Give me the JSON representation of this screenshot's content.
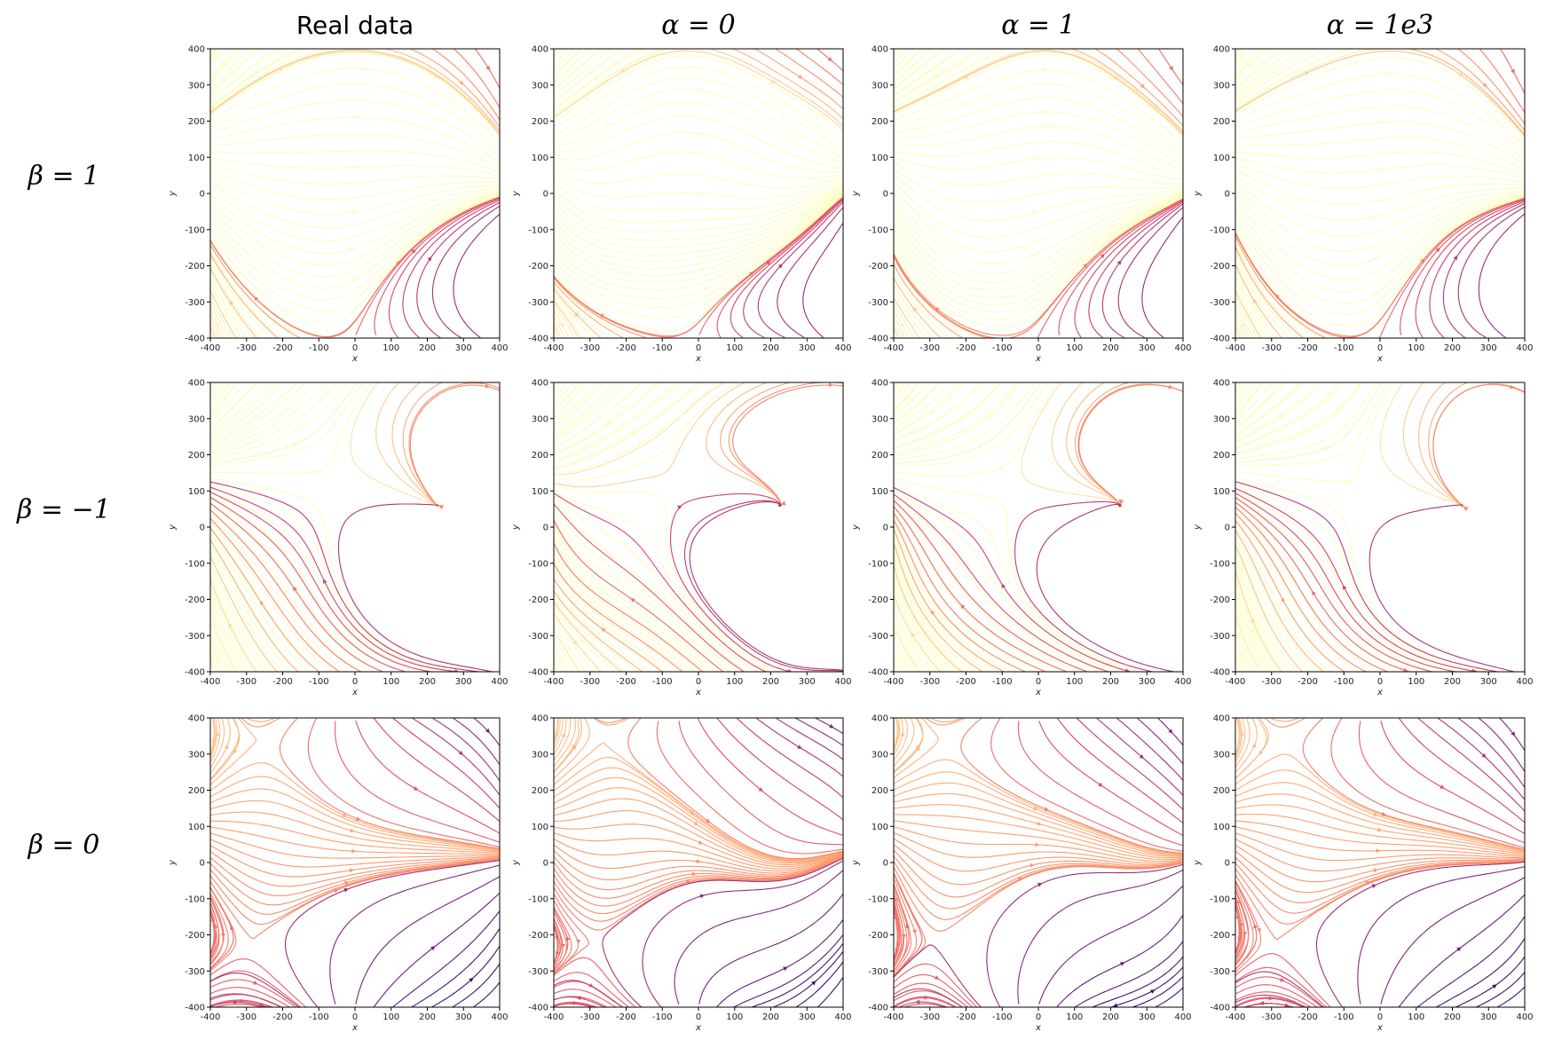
{
  "figure": {
    "column_titles": [
      "Real data",
      "α = 0",
      "α = 1",
      "α = 1e3"
    ],
    "row_titles": [
      "β = 1",
      "β = −1",
      "β = 0"
    ]
  },
  "chart_data": {
    "type": "streamplot",
    "grid_rows": 3,
    "grid_cols": 4,
    "xlabel": "x",
    "ylabel": "y",
    "xlim": [
      -400,
      400
    ],
    "ylim": [
      -400,
      400
    ],
    "xticks": [
      -400,
      -300,
      -200,
      -100,
      0,
      100,
      200,
      300,
      400
    ],
    "yticks": [
      -400,
      -300,
      -200,
      -100,
      0,
      100,
      200,
      300,
      400
    ],
    "colormap": "inferno",
    "colormap_stops": [
      "#3b0f70",
      "#8c2981",
      "#de4968",
      "#fe9f6d",
      "#fcfdbf"
    ],
    "panels": [
      {
        "row": 0,
        "col": 0,
        "row_title": "β = 1",
        "col_title": "Real data"
      },
      {
        "row": 0,
        "col": 1,
        "row_title": "β = 1",
        "col_title": "α = 0"
      },
      {
        "row": 0,
        "col": 2,
        "row_title": "β = 1",
        "col_title": "α = 1"
      },
      {
        "row": 0,
        "col": 3,
        "row_title": "β = 1",
        "col_title": "α = 1e3"
      },
      {
        "row": 1,
        "col": 0,
        "row_title": "β = −1",
        "col_title": "Real data"
      },
      {
        "row": 1,
        "col": 1,
        "row_title": "β = −1",
        "col_title": "α = 0"
      },
      {
        "row": 1,
        "col": 2,
        "row_title": "β = −1",
        "col_title": "α = 1"
      },
      {
        "row": 1,
        "col": 3,
        "row_title": "β = −1",
        "col_title": "α = 1e3"
      },
      {
        "row": 2,
        "col": 0,
        "row_title": "β = 0",
        "col_title": "Real data"
      },
      {
        "row": 2,
        "col": 1,
        "row_title": "β = 0",
        "col_title": "α = 0"
      },
      {
        "row": 2,
        "col": 2,
        "row_title": "β = 0",
        "col_title": "α = 1"
      },
      {
        "row": 2,
        "col": 3,
        "row_title": "β = 0",
        "col_title": "α = 1e3"
      }
    ]
  }
}
